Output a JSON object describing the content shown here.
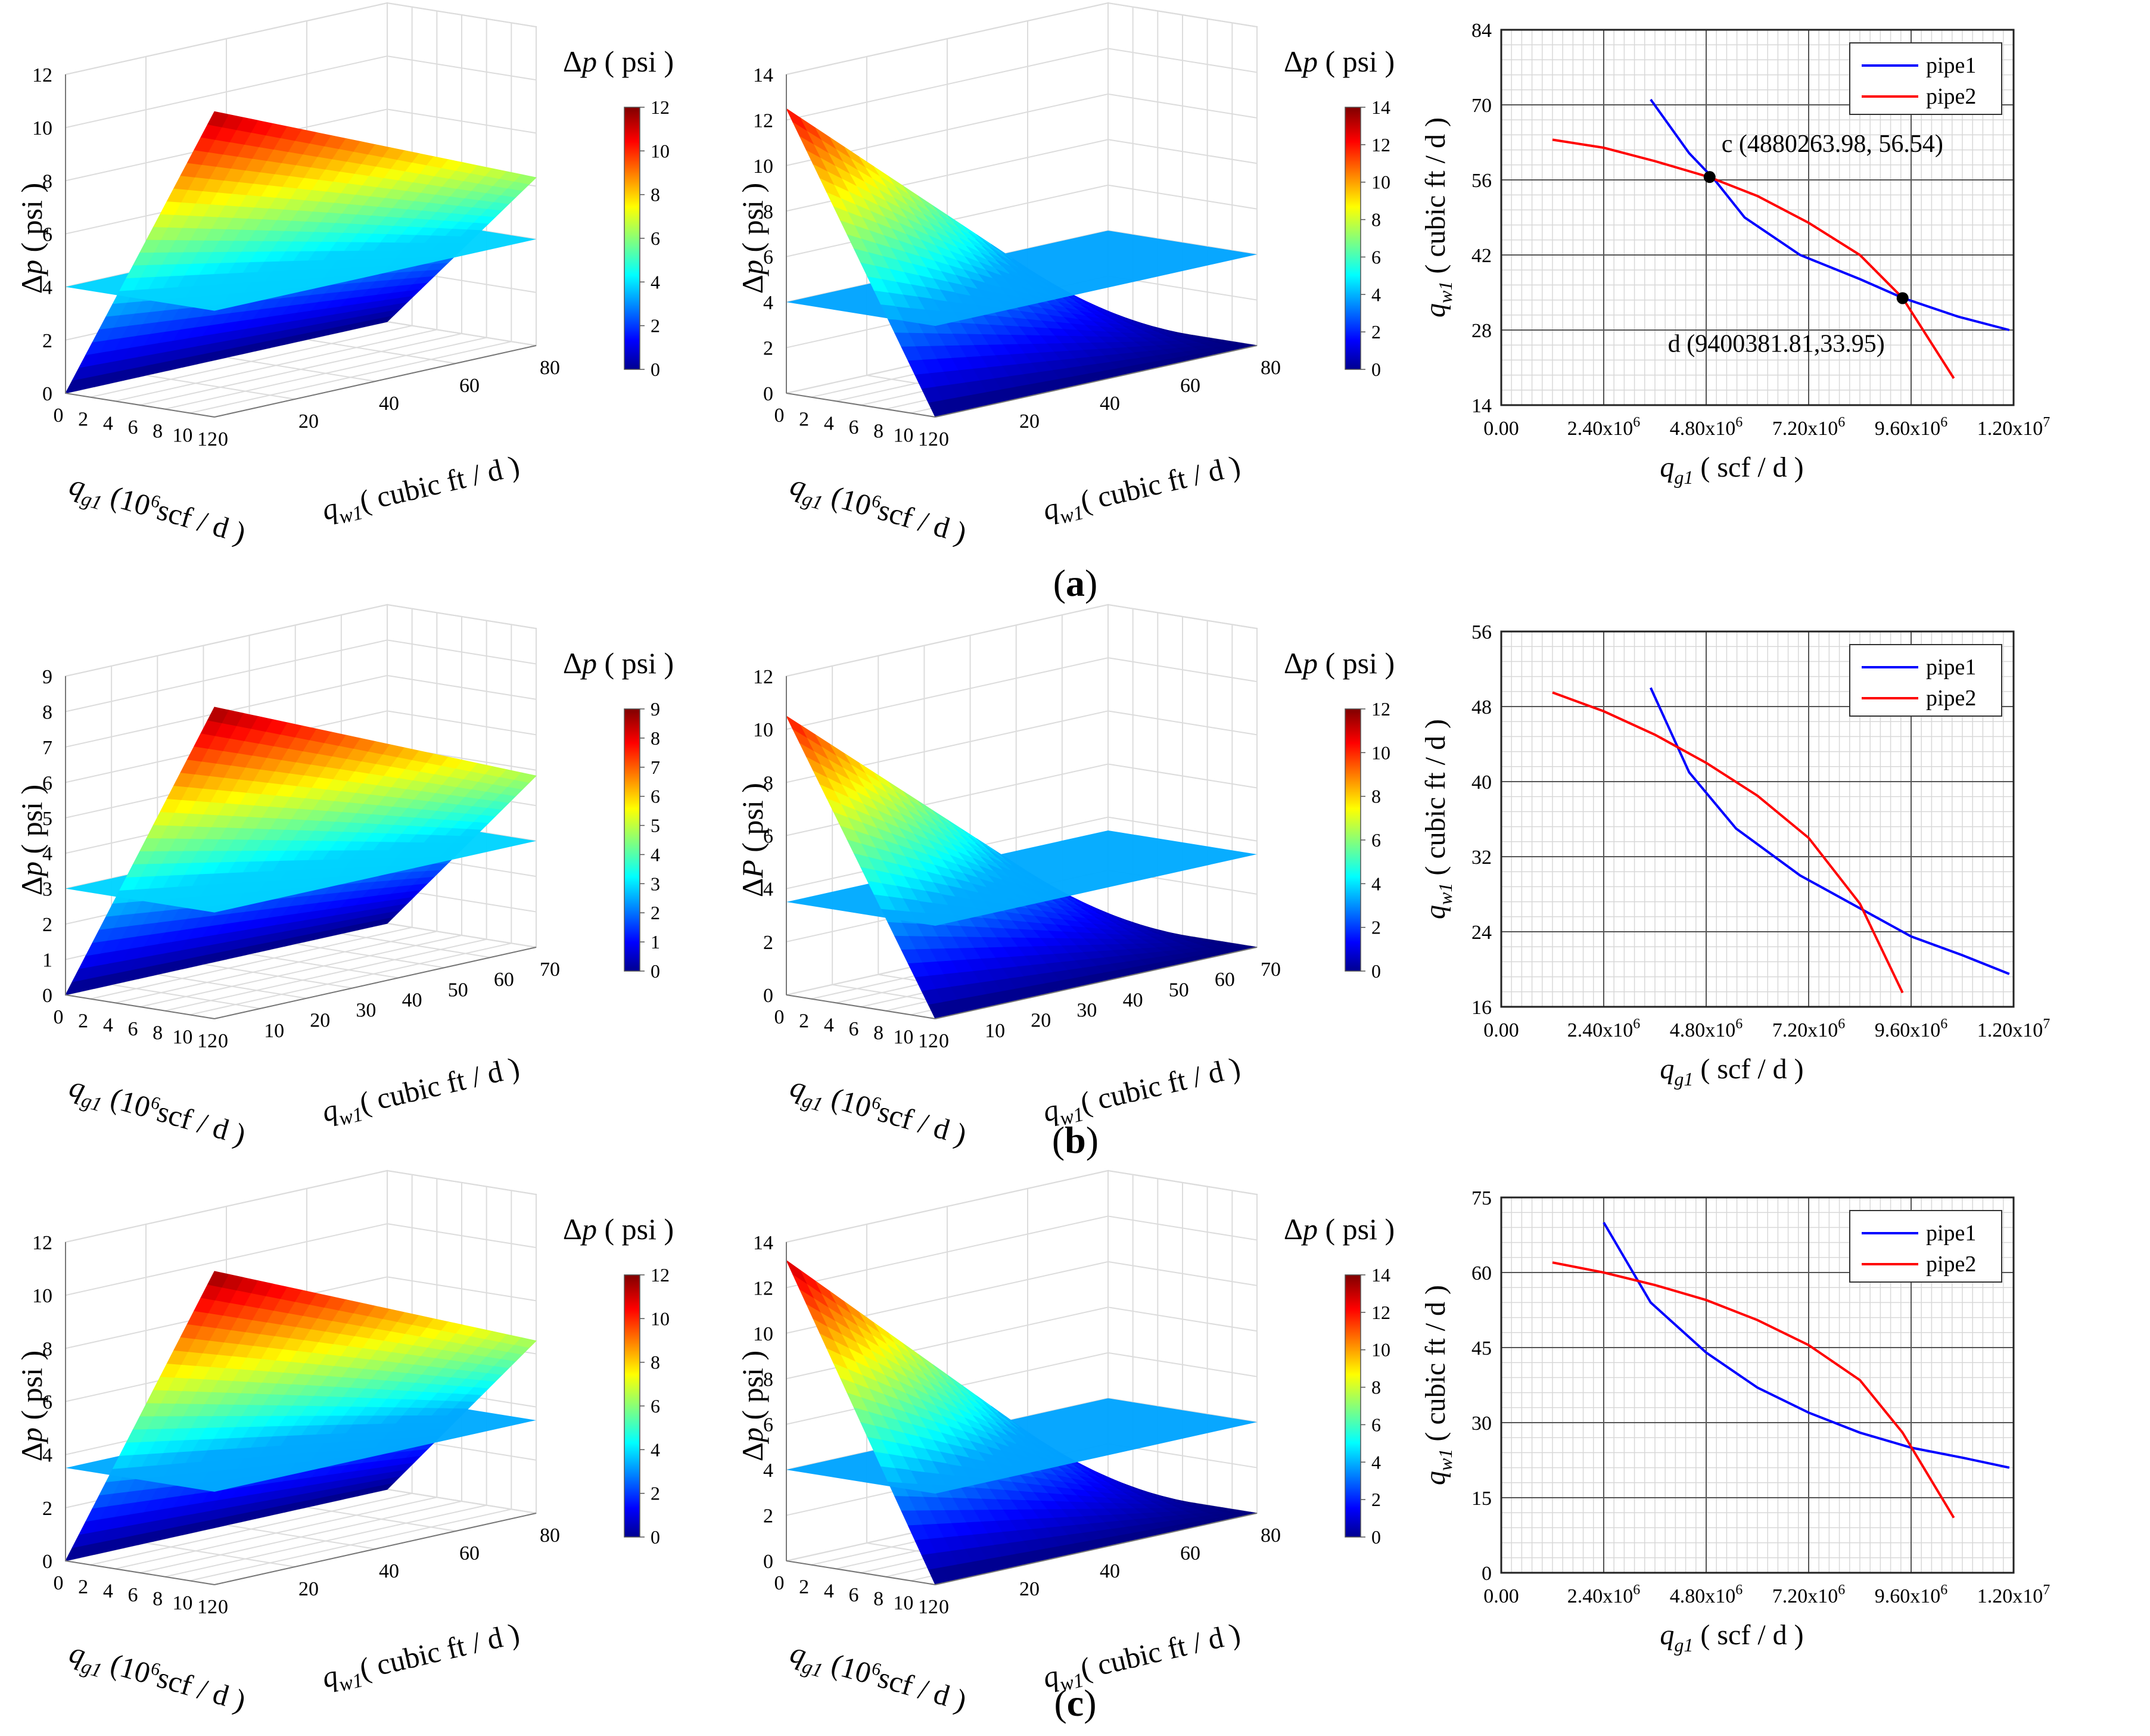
{
  "colors": {
    "pipe1": "#0000ff",
    "pipe2": "#ff0000",
    "grid_major": "#555555",
    "grid_minor": "#d8d8d8"
  },
  "axis_symbols": {
    "delta": "Δ",
    "p_letter": "p",
    "P_letter": "P",
    "q_letter": "q",
    "sub_g1": "g1",
    "sub_w1": "w1",
    "colorbar_title_unit": "( psi )",
    "z_unit": "( psi )",
    "qg1_unit": "scf / d )",
    "qg1_unit_pre": "(10",
    "qg1_unit_exp": "6",
    "qw1_unit": "( cubic ft / d )",
    "qg1_2d_unit": "( scf / d )",
    "qw1_2d_unit": "( cubic ft / d )"
  },
  "panels": [
    {
      "label": "a",
      "surfaces": [
        {
          "type": "surface3d",
          "z_letter": "p",
          "z_ticks": [
            "0",
            "2",
            "4",
            "6",
            "8",
            "10",
            "12"
          ],
          "colorbar_ticks": [
            "0",
            "2",
            "4",
            "6",
            "8",
            "10",
            "12"
          ],
          "x_ticks": [
            "0",
            "2",
            "4",
            "6",
            "8",
            "10",
            "12"
          ],
          "y_ticks": [
            "0",
            "20",
            "40",
            "60",
            "80"
          ],
          "z_max": 12,
          "surface_z_range": [
            0,
            11.5
          ],
          "plane_z": 4,
          "slope": "rising_with_qg1"
        },
        {
          "type": "surface3d",
          "z_letter": "p",
          "z_ticks": [
            "0",
            "2",
            "4",
            "6",
            "8",
            "10",
            "12",
            "14"
          ],
          "colorbar_ticks": [
            "0",
            "2",
            "4",
            "6",
            "8",
            "10",
            "12",
            "14"
          ],
          "x_ticks": [
            "0",
            "2",
            "4",
            "6",
            "8",
            "10",
            "12"
          ],
          "y_ticks": [
            "0",
            "20",
            "40",
            "60",
            "80"
          ],
          "z_max": 14,
          "surface_z_range": [
            0,
            12.5
          ],
          "plane_z": 4,
          "slope": "rising_with_qw1"
        }
      ],
      "chart2d": {
        "type": "line",
        "x_tick_labels": [
          "0.00",
          "2.40x10",
          "4.80x10",
          "7.20x10",
          "9.60x10",
          "1.20x10"
        ],
        "x_tick_exps": [
          "",
          "6",
          "6",
          "6",
          "6",
          "7"
        ],
        "xlim": [
          0,
          12000000
        ],
        "y_ticks": [
          "14",
          "28",
          "42",
          "56",
          "70",
          "84"
        ],
        "ylim": [
          14,
          84
        ],
        "series": [
          {
            "name": "pipe1",
            "x": [
              3500000,
              4400000,
              5000000,
              5700000,
              7000000,
              8400000,
              9400000,
              10700000,
              11900000
            ],
            "y": [
              71,
              61,
              56,
              49,
              42,
              37.5,
              34,
              30.5,
              28
            ]
          },
          {
            "name": "pipe2",
            "x": [
              1200000,
              2400000,
              3600000,
              4880000,
              6000000,
              7200000,
              8400000,
              9400000,
              10600000
            ],
            "y": [
              63.5,
              62,
              59.5,
              56.5,
              53,
              48,
              42,
              34,
              19
            ]
          }
        ],
        "points": [
          {
            "label": "c (4880263.98, 56.54)",
            "x": 4880263.98,
            "y": 56.54
          },
          {
            "label": "d (9400381.81,33.95)",
            "x": 9400381.81,
            "y": 33.95
          }
        ]
      }
    },
    {
      "label": "b",
      "surfaces": [
        {
          "type": "surface3d",
          "z_letter": "p",
          "z_ticks": [
            "0",
            "1",
            "2",
            "3",
            "4",
            "5",
            "6",
            "7",
            "8",
            "9"
          ],
          "colorbar_ticks": [
            "0",
            "1",
            "2",
            "3",
            "4",
            "5",
            "6",
            "7",
            "8",
            "9"
          ],
          "x_ticks": [
            "0",
            "2",
            "4",
            "6",
            "8",
            "10",
            "12"
          ],
          "y_ticks": [
            "0",
            "10",
            "20",
            "30",
            "40",
            "50",
            "60",
            "70"
          ],
          "z_max": 9,
          "surface_z_range": [
            0,
            8.8
          ],
          "plane_z": 3,
          "slope": "rising_with_qg1"
        },
        {
          "type": "surface3d",
          "z_letter": "P",
          "z_ticks": [
            "0",
            "2",
            "4",
            "6",
            "8",
            "10",
            "12"
          ],
          "colorbar_ticks": [
            "0",
            "2",
            "4",
            "6",
            "8",
            "10",
            "12"
          ],
          "x_ticks": [
            "0",
            "2",
            "4",
            "6",
            "8",
            "10",
            "12"
          ],
          "y_ticks": [
            "0",
            "10",
            "20",
            "30",
            "40",
            "50",
            "60",
            "70"
          ],
          "z_max": 12,
          "surface_z_range": [
            0,
            10.5
          ],
          "plane_z": 3.5,
          "slope": "rising_with_qw1"
        }
      ],
      "chart2d": {
        "type": "line",
        "x_tick_labels": [
          "0.00",
          "2.40x10",
          "4.80x10",
          "7.20x10",
          "9.60x10",
          "1.20x10"
        ],
        "x_tick_exps": [
          "",
          "6",
          "6",
          "6",
          "6",
          "7"
        ],
        "xlim": [
          0,
          12000000
        ],
        "y_ticks": [
          "16",
          "24",
          "32",
          "40",
          "48",
          "56"
        ],
        "ylim": [
          16,
          56
        ],
        "series": [
          {
            "name": "pipe1",
            "x": [
              3500000,
              4400000,
              5500000,
              7000000,
              8400000,
              9600000,
              10800000,
              11900000
            ],
            "y": [
              50,
              41,
              35,
              30,
              26.5,
              23.5,
              21.5,
              19.5
            ]
          },
          {
            "name": "pipe2",
            "x": [
              1200000,
              2400000,
              3600000,
              4800000,
              6000000,
              7200000,
              8400000,
              9400000
            ],
            "y": [
              49.5,
              47.5,
              45,
              42,
              38.5,
              34,
              27,
              17.5
            ]
          }
        ],
        "points": []
      }
    },
    {
      "label": "c",
      "surfaces": [
        {
          "type": "surface3d",
          "z_letter": "p",
          "z_ticks": [
            "0",
            "2",
            "4",
            "6",
            "8",
            "10",
            "12"
          ],
          "colorbar_ticks": [
            "0",
            "2",
            "4",
            "6",
            "8",
            "10",
            "12"
          ],
          "x_ticks": [
            "0",
            "2",
            "4",
            "6",
            "8",
            "10",
            "12"
          ],
          "y_ticks": [
            "0",
            "20",
            "40",
            "60",
            "80"
          ],
          "z_max": 12,
          "surface_z_range": [
            0,
            11.8
          ],
          "plane_z": 3.5,
          "slope": "rising_with_qg1"
        },
        {
          "type": "surface3d",
          "z_letter": "p",
          "z_ticks": [
            "0",
            "2",
            "4",
            "6",
            "8",
            "10",
            "12",
            "14"
          ],
          "colorbar_ticks": [
            "0",
            "2",
            "4",
            "6",
            "8",
            "10",
            "12",
            "14"
          ],
          "x_ticks": [
            "0",
            "2",
            "4",
            "6",
            "8",
            "10",
            "12"
          ],
          "y_ticks": [
            "0",
            "20",
            "40",
            "60",
            "80"
          ],
          "z_max": 14,
          "surface_z_range": [
            0,
            13.2
          ],
          "plane_z": 4,
          "slope": "rising_with_qw1"
        }
      ],
      "chart2d": {
        "type": "line",
        "x_tick_labels": [
          "0.00",
          "2.40x10",
          "4.80x10",
          "7.20x10",
          "9.60x10",
          "1.20x10"
        ],
        "x_tick_exps": [
          "",
          "6",
          "6",
          "6",
          "6",
          "7"
        ],
        "xlim": [
          0,
          12000000
        ],
        "y_ticks": [
          "0",
          "15",
          "30",
          "45",
          "60",
          "75"
        ],
        "ylim": [
          0,
          75
        ],
        "series": [
          {
            "name": "pipe1",
            "x": [
              2400000,
              3500000,
              4800000,
              6000000,
              7200000,
              8400000,
              9600000,
              10800000,
              11900000
            ],
            "y": [
              70,
              54,
              44,
              37,
              32,
              28,
              25,
              23,
              21
            ]
          },
          {
            "name": "pipe2",
            "x": [
              1200000,
              2400000,
              3600000,
              4800000,
              6000000,
              7200000,
              8400000,
              9400000,
              10600000
            ],
            "y": [
              62,
              60,
              57.5,
              54.5,
              50.5,
              45.5,
              38.5,
              28,
              11
            ]
          }
        ],
        "points": []
      }
    }
  ]
}
